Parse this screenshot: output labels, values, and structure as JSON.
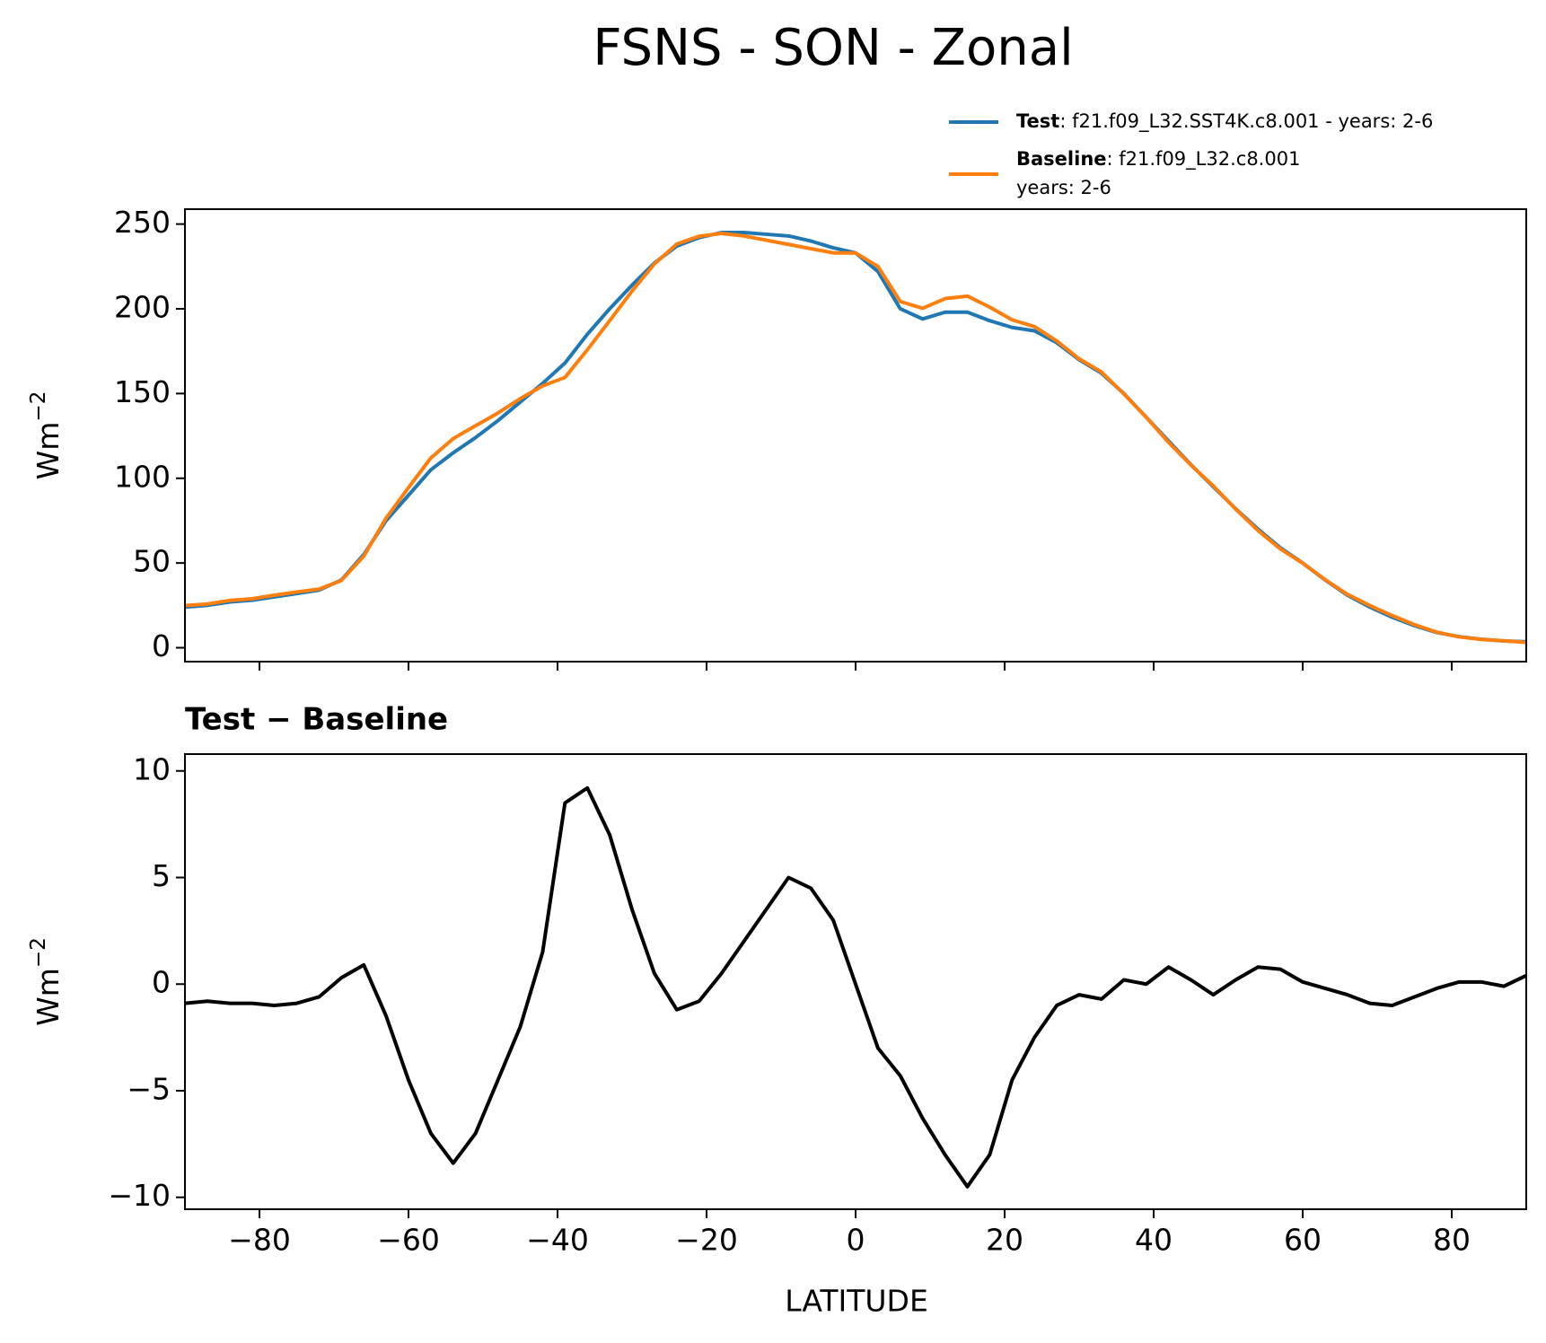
{
  "chart_data": [
    {
      "type": "line",
      "title": "FSNS - SON - Zonal",
      "ylabel": "Wm",
      "ylabel_sup": "−2",
      "x": [
        -90,
        -87,
        -84,
        -81,
        -78,
        -75,
        -72,
        -69,
        -66,
        -63,
        -60,
        -57,
        -54,
        -51,
        -48,
        -45,
        -42,
        -39,
        -36,
        -33,
        -30,
        -27,
        -24,
        -21,
        -18,
        -15,
        -12,
        -9,
        -6,
        -3,
        0,
        3,
        6,
        9,
        12,
        15,
        18,
        21,
        24,
        27,
        30,
        33,
        36,
        39,
        42,
        45,
        48,
        51,
        54,
        57,
        60,
        63,
        66,
        69,
        72,
        75,
        78,
        81,
        84,
        87,
        90
      ],
      "series": [
        {
          "name": "Test",
          "description": ": f21.f09_L32.SST4K.c8.001 - years: 2-6",
          "color": "#1f77b4",
          "values": [
            24,
            25,
            27,
            28,
            30,
            32,
            34,
            40,
            55,
            75,
            90,
            105,
            115,
            124,
            134,
            145,
            156,
            168,
            185,
            200,
            214,
            227,
            237,
            242,
            245,
            245,
            244,
            243,
            240,
            236,
            233,
            222,
            200,
            194,
            198,
            198,
            193,
            189,
            187,
            180,
            170,
            162,
            150,
            136,
            122,
            108,
            95,
            82,
            70,
            59,
            50,
            40,
            31,
            24,
            18,
            13,
            9,
            6.5,
            5,
            4,
            3.5
          ]
        },
        {
          "name": "Baseline",
          "description": [
            ": f21.f09_L32.c8.001",
            "years: 2-6"
          ],
          "color": "#ff7f0e",
          "values": [
            24.9,
            25.8,
            27.9,
            28.9,
            31,
            32.9,
            34.6,
            39.7,
            54.1,
            76.5,
            94.5,
            112,
            123.4,
            131,
            138.5,
            147,
            154.5,
            159.5,
            175.8,
            193,
            210.5,
            226.5,
            238.2,
            242.8,
            244.5,
            243,
            240.5,
            238,
            235.5,
            233,
            233,
            225,
            204.3,
            200.3,
            206,
            207.5,
            201,
            193.5,
            189.5,
            181,
            170.5,
            162.7,
            149.8,
            136,
            121.2,
            107.8,
            95.5,
            81.8,
            69.2,
            58.3,
            49.9,
            40.2,
            31.5,
            24.9,
            19,
            13.6,
            9.2,
            6.4,
            4.9,
            4.1,
            3.1
          ]
        }
      ],
      "xlim": [
        -90,
        90
      ],
      "ylim": [
        -8.2,
        258.8
      ],
      "yticks": [
        0,
        50,
        100,
        150,
        200,
        250
      ]
    },
    {
      "type": "line",
      "title": "Test − Baseline",
      "ylabel": "Wm",
      "ylabel_sup": "−2",
      "xlabel": "LATITUDE",
      "x": [
        -90,
        -87,
        -84,
        -81,
        -78,
        -75,
        -72,
        -69,
        -66,
        -63,
        -60,
        -57,
        -54,
        -51,
        -48,
        -45,
        -42,
        -39,
        -36,
        -33,
        -30,
        -27,
        -24,
        -21,
        -18,
        -15,
        -12,
        -9,
        -6,
        -3,
        0,
        3,
        6,
        9,
        12,
        15,
        18,
        21,
        24,
        27,
        30,
        33,
        36,
        39,
        42,
        45,
        48,
        51,
        54,
        57,
        60,
        63,
        66,
        69,
        72,
        75,
        78,
        81,
        84,
        87,
        90
      ],
      "series": [
        {
          "color": "#000000",
          "values": [
            -0.9,
            -0.8,
            -0.9,
            -0.9,
            -1.0,
            -0.9,
            -0.6,
            0.3,
            0.9,
            -1.5,
            -4.5,
            -7,
            -8.4,
            -7,
            -4.5,
            -2,
            1.5,
            8.5,
            9.2,
            7,
            3.5,
            0.5,
            -1.2,
            -0.8,
            0.5,
            2,
            3.5,
            5,
            4.5,
            3,
            0,
            -3,
            -4.3,
            -6.3,
            -8,
            -9.5,
            -8,
            -4.5,
            -2.5,
            -1,
            -0.5,
            -0.7,
            0.2,
            0,
            0.8,
            0.2,
            -0.5,
            0.2,
            0.8,
            0.7,
            0.1,
            -0.2,
            -0.5,
            -0.9,
            -1.0,
            -0.6,
            -0.2,
            0.1,
            0.1,
            -0.1,
            0.4
          ]
        }
      ],
      "xlim": [
        -90,
        90
      ],
      "ylim": [
        -10.56,
        10.79
      ],
      "xticks": [
        {
          "value": -80,
          "label": "−80"
        },
        {
          "value": -60,
          "label": "−60"
        },
        {
          "value": -40,
          "label": "−40"
        },
        {
          "value": -20,
          "label": "−20"
        },
        0,
        20,
        40,
        60,
        80
      ],
      "yticks": [
        {
          "value": -10,
          "label": "−10"
        },
        {
          "value": -5,
          "label": "−5"
        },
        0,
        5,
        10
      ]
    }
  ]
}
